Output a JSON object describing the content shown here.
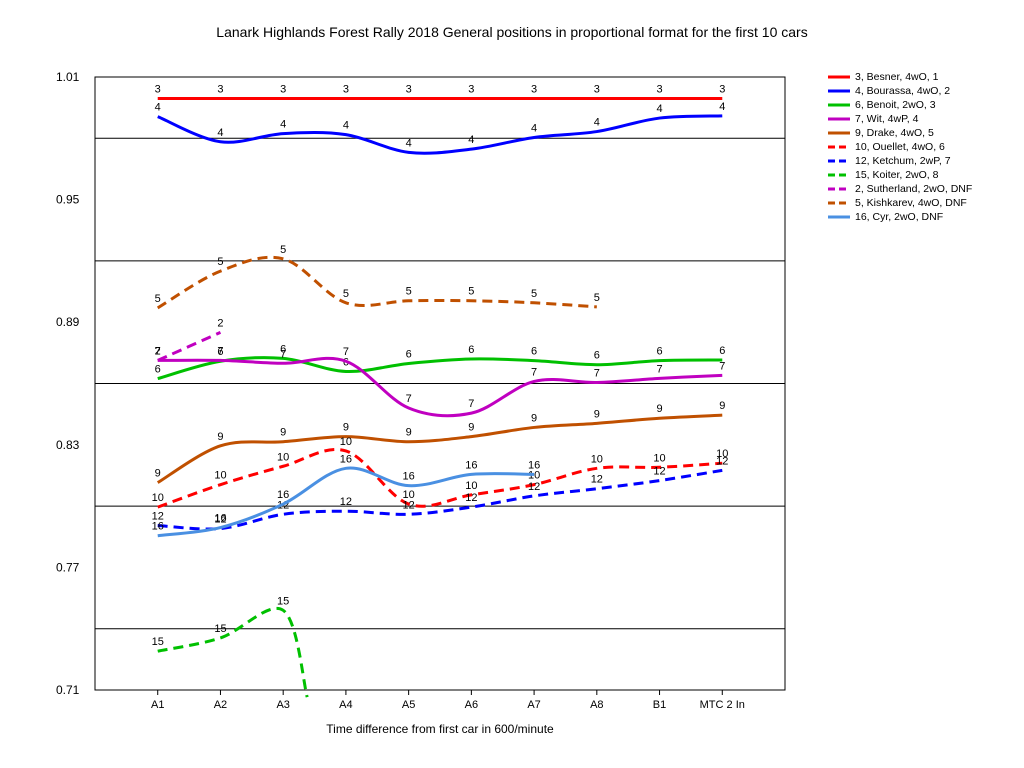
{
  "chart_data": {
    "type": "line",
    "title": "Lanark Highlands Forest Rally 2018  General positions in proportional format for the first 10 cars",
    "xlabel": "Time difference from first car in 600/minute",
    "ylabel": "",
    "categories": [
      "A1",
      "A2",
      "A3",
      "A4",
      "A5",
      "A6",
      "A7",
      "A8",
      "B1",
      "MTC 2 In"
    ],
    "ylim": [
      0.71,
      1.01
    ],
    "yticks": [
      "1.01",
      "0.95",
      "0.89",
      "0.83",
      "0.77",
      "0.71"
    ],
    "grid": true,
    "legend": "right",
    "series": [
      {
        "name": "3, Besner, 4wO, 1",
        "label": "3",
        "color": "#ff0000",
        "dash": false,
        "values": [
          0.9995,
          0.9995,
          0.9995,
          0.9995,
          0.9995,
          0.9995,
          0.9995,
          0.9995,
          0.9995,
          0.9995
        ]
      },
      {
        "name": "4, Bourassa, 4wO, 2",
        "label": "4",
        "color": "#0000ff",
        "dash": false,
        "values": [
          0.9906,
          0.9783,
          0.9823,
          0.9818,
          0.9731,
          0.9747,
          0.9804,
          0.9833,
          0.9899,
          0.991
        ]
      },
      {
        "name": "6, Benoit, 2wO, 3",
        "label": "6",
        "color": "#00c000",
        "dash": false,
        "values": [
          0.8624,
          0.8709,
          0.8723,
          0.8659,
          0.8698,
          0.872,
          0.8712,
          0.8692,
          0.8712,
          0.8715
        ]
      },
      {
        "name": "7, Wit, 4wP, 4",
        "label": "7",
        "color": "#c000c0",
        "dash": false,
        "values": null,
        "start": 0,
        "values_": null
      }
    ]
  },
  "legend_items": [
    {
      "label": "3, Besner, 4wO, 1",
      "color": "#ff0000",
      "dash": false
    },
    {
      "label": "4, Bourassa, 4wO, 2",
      "color": "#0000ff",
      "dash": false
    },
    {
      "label": "6, Benoit, 2wO, 3",
      "color": "#00c000",
      "dash": false
    },
    {
      "label": "7, Wit, 4wP, 4",
      "color": "#c000c0",
      "dash": false
    },
    {
      "label": "9, Drake, 4wO, 5",
      "color": "#c05000",
      "dash": false
    },
    {
      "label": "10, Ouellet, 4wO, 6",
      "color": "#ff0000",
      "dash": true
    },
    {
      "label": "12, Ketchum, 2wP, 7",
      "color": "#0000ff",
      "dash": true
    },
    {
      "label": "15, Koiter, 2wO, 8",
      "color": "#00c000",
      "dash": true
    },
    {
      "label": "2, Sutherland, 2wO, DNF",
      "color": "#c000c0",
      "dash": true
    },
    {
      "label": "5, Kishkarev, 4wO, DNF",
      "color": "#c05000",
      "dash": true
    },
    {
      "label": "16, Cyr, 2wO, DNF",
      "color": "#4a90e2",
      "dash": false
    }
  ]
}
